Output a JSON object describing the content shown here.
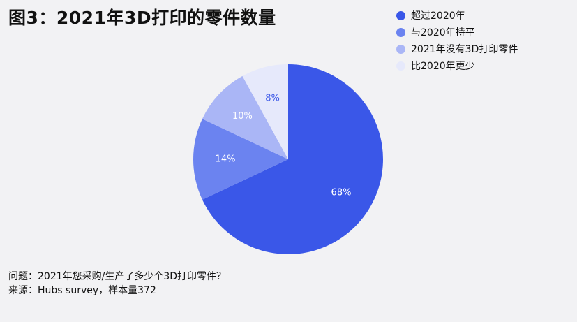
{
  "chart_data": {
    "type": "pie",
    "title": "图3：2021年3D打印的零件数量",
    "categories": [
      "超过2020年",
      "与2020年持平",
      "2021年没有3D打印零件",
      "比2020年更少"
    ],
    "values": [
      68,
      14,
      10,
      8
    ],
    "labels": [
      "68%",
      "14%",
      "10%",
      "8%"
    ],
    "colors": [
      "#3a57e8",
      "#6b83f0",
      "#aab6f6",
      "#e6e9fb"
    ],
    "label_colors": [
      "#ffffff",
      "#ffffff",
      "#ffffff",
      "#3a57e8"
    ],
    "legend_position": "top-right"
  },
  "footnote": {
    "question": "问题：2021年您采购/生产了多少个3D打印零件？",
    "source": "来源：Hubs survey，样本量372"
  }
}
